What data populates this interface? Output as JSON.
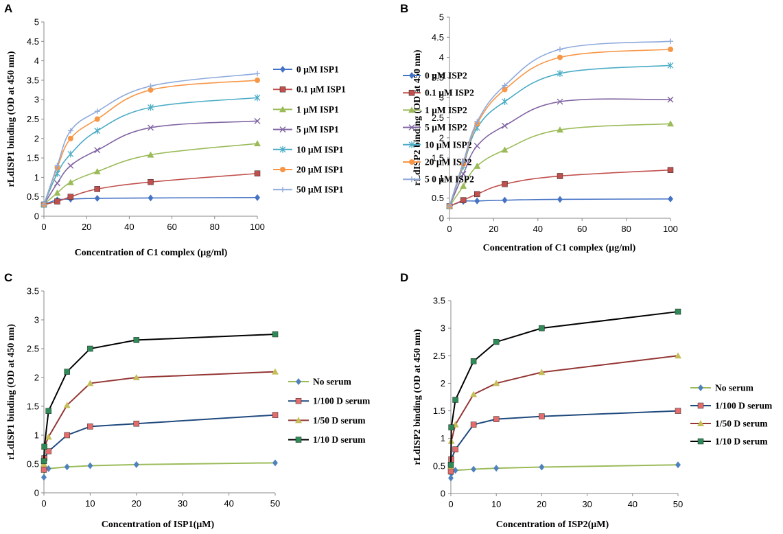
{
  "chart_data": [
    {
      "type": "line",
      "panel": "A",
      "xlabel": "Concentration of C1 complex (µg/ml)",
      "ylabel": "rLdISP1 binding (OD at 450 nm)",
      "xlim": [
        0,
        100
      ],
      "ylim": [
        0,
        5
      ],
      "x_ticks": [
        "0",
        "20",
        "40",
        "60",
        "80",
        "100"
      ],
      "y_ticks": [
        "0",
        "0.5",
        "1",
        "1.5",
        "2",
        "2.5",
        "3",
        "3.5",
        "4",
        "4.5",
        "5"
      ],
      "x": [
        0,
        6.25,
        12.5,
        25,
        50,
        100
      ],
      "legend_position": "right",
      "series": [
        {
          "name": "0 µM ISP1",
          "color": "#4472C4",
          "marker": "diamond",
          "values": [
            0.3,
            0.42,
            0.44,
            0.46,
            0.47,
            0.48
          ]
        },
        {
          "name": "0.1  µM ISP1",
          "color": "#C0504D",
          "marker": "square",
          "values": [
            0.3,
            0.38,
            0.5,
            0.7,
            0.88,
            1.1
          ]
        },
        {
          "name": "1 µM ISP1",
          "color": "#9BBB59",
          "marker": "triangle",
          "values": [
            0.3,
            0.6,
            0.87,
            1.15,
            1.58,
            1.87
          ]
        },
        {
          "name": "5 µM ISP1",
          "color": "#8064A2",
          "marker": "x",
          "values": [
            0.3,
            0.85,
            1.3,
            1.7,
            2.28,
            2.45
          ]
        },
        {
          "name": "10 µM ISP1",
          "color": "#4BACC6",
          "marker": "star",
          "values": [
            0.3,
            1.1,
            1.6,
            2.2,
            2.8,
            3.05
          ]
        },
        {
          "name": "20 µM ISP1",
          "color": "#F79646",
          "marker": "circle",
          "values": [
            0.3,
            1.25,
            2.0,
            2.5,
            3.25,
            3.5
          ]
        },
        {
          "name": "50 µM ISP1",
          "color": "#8EA9DB",
          "marker": "plus",
          "values": [
            0.3,
            1.3,
            2.2,
            2.7,
            3.35,
            3.67
          ]
        }
      ]
    },
    {
      "type": "line",
      "panel": "B",
      "xlabel": "Concentration of C1 complex (µg/ml)",
      "ylabel": "rLdISP2 binding (OD at 450 nm)",
      "xlim": [
        0,
        100
      ],
      "ylim": [
        0,
        5
      ],
      "x_ticks": [
        "0",
        "20",
        "40",
        "60",
        "80",
        "100"
      ],
      "y_ticks": [
        "0",
        "0.5",
        "1",
        "1.5",
        "2",
        "2.5",
        "3",
        "3.5",
        "4",
        "4.5",
        "5"
      ],
      "x": [
        0,
        6.25,
        12.5,
        25,
        50,
        100
      ],
      "legend_position": "right",
      "series": [
        {
          "name": "0 µM ISP2",
          "color": "#4472C4",
          "marker": "diamond",
          "values": [
            0.3,
            0.42,
            0.43,
            0.45,
            0.47,
            0.48
          ]
        },
        {
          "name": "0.1 µM ISP2",
          "color": "#C0504D",
          "marker": "square",
          "values": [
            0.3,
            0.45,
            0.6,
            0.85,
            1.05,
            1.2
          ]
        },
        {
          "name": "1 µM ISP2",
          "color": "#9BBB59",
          "marker": "triangle",
          "values": [
            0.3,
            0.8,
            1.3,
            1.7,
            2.2,
            2.35
          ]
        },
        {
          "name": "5 µM ISP2",
          "color": "#8064A2",
          "marker": "x",
          "values": [
            0.3,
            1.1,
            1.8,
            2.3,
            2.9,
            2.95
          ]
        },
        {
          "name": "10 µM ISP2",
          "color": "#4BACC6",
          "marker": "star",
          "values": [
            0.3,
            1.3,
            2.25,
            2.9,
            3.6,
            3.8
          ]
        },
        {
          "name": "20 µM ISP2",
          "color": "#F79646",
          "marker": "circle",
          "values": [
            0.3,
            1.35,
            2.35,
            3.2,
            4.0,
            4.2
          ]
        },
        {
          "name": "5 0 µM ISP2",
          "color": "#8EA9DB",
          "marker": "plus",
          "values": [
            0.3,
            1.4,
            2.4,
            3.3,
            4.2,
            4.4
          ]
        }
      ]
    },
    {
      "type": "line",
      "panel": "C",
      "xlabel": "Concentration of ISP1(µM)",
      "ylabel": "rLdISP1 binding (OD at 450 nm)",
      "xlim": [
        0,
        50
      ],
      "ylim": [
        0,
        3.5
      ],
      "x_ticks": [
        "0",
        "10",
        "20",
        "30",
        "40",
        "50"
      ],
      "y_ticks": [
        "0",
        "0.5",
        "1",
        "1.5",
        "2",
        "2.5",
        "3",
        "3.5"
      ],
      "x": [
        0,
        0.1,
        1,
        5,
        10,
        20,
        50
      ],
      "legend_position": "right",
      "series": [
        {
          "name": "No serum",
          "color": "#4F81BD",
          "line_color": "#9BBB59",
          "marker": "diamond",
          "values": [
            0.27,
            0.4,
            0.42,
            0.45,
            0.47,
            0.49,
            0.52
          ]
        },
        {
          "name": "1/100 D serum",
          "color": "#E46C6C",
          "line_color": "#1F497D",
          "marker": "square",
          "values": [
            0.4,
            0.6,
            0.72,
            1.0,
            1.15,
            1.2,
            1.35
          ]
        },
        {
          "name": "1/50 D serum",
          "color": "#C4BD5A",
          "line_color": "#943634",
          "marker": "triangle",
          "values": [
            0.5,
            0.8,
            0.97,
            1.52,
            1.9,
            2.0,
            2.1
          ]
        },
        {
          "name": "1/10 D serum",
          "color": "#2E8B57",
          "line_color": "#000000",
          "marker": "square",
          "values": [
            0.55,
            0.8,
            1.42,
            2.1,
            2.5,
            2.65,
            2.75
          ]
        }
      ]
    },
    {
      "type": "line",
      "panel": "D",
      "xlabel": "Concentration of ISP2(µM)",
      "ylabel": "rLdISP2 binding (OD at 450 nm)",
      "xlim": [
        0,
        50
      ],
      "ylim": [
        0,
        3.5
      ],
      "x_ticks": [
        "0",
        "10",
        "20",
        "30",
        "40",
        "50"
      ],
      "y_ticks": [
        "0",
        "0.5",
        "1",
        "1.5",
        "2",
        "2.5",
        "3",
        "3.5"
      ],
      "x": [
        0,
        0.1,
        1,
        5,
        10,
        20,
        50
      ],
      "legend_position": "right",
      "series": [
        {
          "name": "No serum",
          "color": "#4F81BD",
          "line_color": "#9BBB59",
          "marker": "diamond",
          "values": [
            0.28,
            0.36,
            0.42,
            0.44,
            0.46,
            0.48,
            0.52
          ]
        },
        {
          "name": "1/100 D serum",
          "color": "#E46C6C",
          "line_color": "#1F497D",
          "marker": "square",
          "values": [
            0.4,
            0.62,
            0.8,
            1.25,
            1.35,
            1.4,
            1.5
          ]
        },
        {
          "name": "1/50 D serum",
          "color": "#C4BD5A",
          "line_color": "#943634",
          "marker": "triangle",
          "values": [
            0.5,
            0.95,
            1.25,
            1.8,
            2.0,
            2.2,
            2.5
          ]
        },
        {
          "name": "1/10 D serum",
          "color": "#2E8B57",
          "line_color": "#000000",
          "marker": "square",
          "values": [
            0.52,
            1.2,
            1.7,
            2.4,
            2.75,
            3.0,
            3.3
          ]
        }
      ]
    }
  ]
}
